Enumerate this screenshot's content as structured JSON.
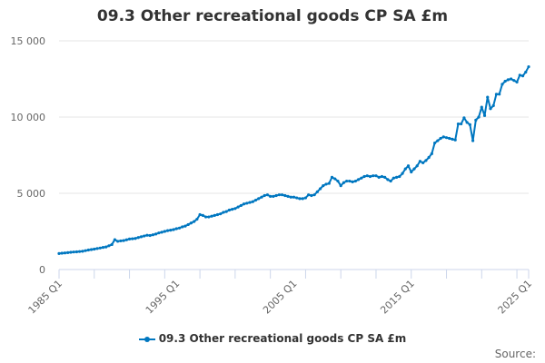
{
  "chart_data": {
    "type": "line",
    "title": "09.3 Other recreational goods CP SA £m",
    "xlabel": "",
    "ylabel": "",
    "x_start": "1985 Q1",
    "x_end": "2025 Q1",
    "frequency": "quarterly",
    "x_tick_labels": [
      "1985 Q1",
      "1995 Q1",
      "2005 Q1",
      "2015 Q1",
      "2025 Q1"
    ],
    "y_tick_labels": [
      "0",
      "5 000",
      "10 000",
      "15 000"
    ],
    "y_ticks": [
      0,
      5000,
      10000,
      15000
    ],
    "ylim": [
      0,
      15000
    ],
    "grid": true,
    "legend_position": "bottom",
    "series": [
      {
        "name": "09.3 Other recreational goods CP SA £m",
        "color": "#0077c0",
        "values": [
          1050,
          1070,
          1090,
          1110,
          1130,
          1150,
          1160,
          1180,
          1200,
          1240,
          1280,
          1310,
          1340,
          1380,
          1410,
          1450,
          1480,
          1560,
          1640,
          1960,
          1850,
          1880,
          1900,
          1950,
          2000,
          2020,
          2040,
          2100,
          2150,
          2200,
          2250,
          2230,
          2280,
          2330,
          2400,
          2450,
          2500,
          2550,
          2580,
          2620,
          2680,
          2720,
          2800,
          2850,
          2950,
          3050,
          3150,
          3300,
          3600,
          3550,
          3450,
          3450,
          3500,
          3550,
          3600,
          3650,
          3750,
          3800,
          3900,
          3950,
          4000,
          4100,
          4200,
          4300,
          4350,
          4400,
          4450,
          4550,
          4650,
          4750,
          4850,
          4900,
          4800,
          4800,
          4850,
          4900,
          4900,
          4850,
          4800,
          4750,
          4750,
          4700,
          4650,
          4650,
          4700,
          4900,
          4850,
          4900,
          5100,
          5300,
          5500,
          5600,
          5650,
          6050,
          5950,
          5800,
          5500,
          5700,
          5800,
          5800,
          5750,
          5800,
          5900,
          6000,
          6100,
          6150,
          6100,
          6150,
          6150,
          6050,
          6100,
          6050,
          5900,
          5800,
          6000,
          6050,
          6100,
          6300,
          6600,
          6800,
          6400,
          6600,
          6800,
          7100,
          7000,
          7150,
          7350,
          7600,
          8300,
          8450,
          8600,
          8700,
          8650,
          8600,
          8550,
          8500,
          9550,
          9550,
          9950,
          9650,
          9500,
          8450,
          9800,
          10000,
          10650,
          10100,
          11300,
          10550,
          10750,
          11500,
          11500,
          12150,
          12350,
          12450,
          12500,
          12400,
          12300,
          12750,
          12700,
          12950,
          13300
        ]
      }
    ]
  },
  "legend": {
    "label": "09.3 Other recreational goods CP SA £m"
  },
  "source_label": "Source:"
}
